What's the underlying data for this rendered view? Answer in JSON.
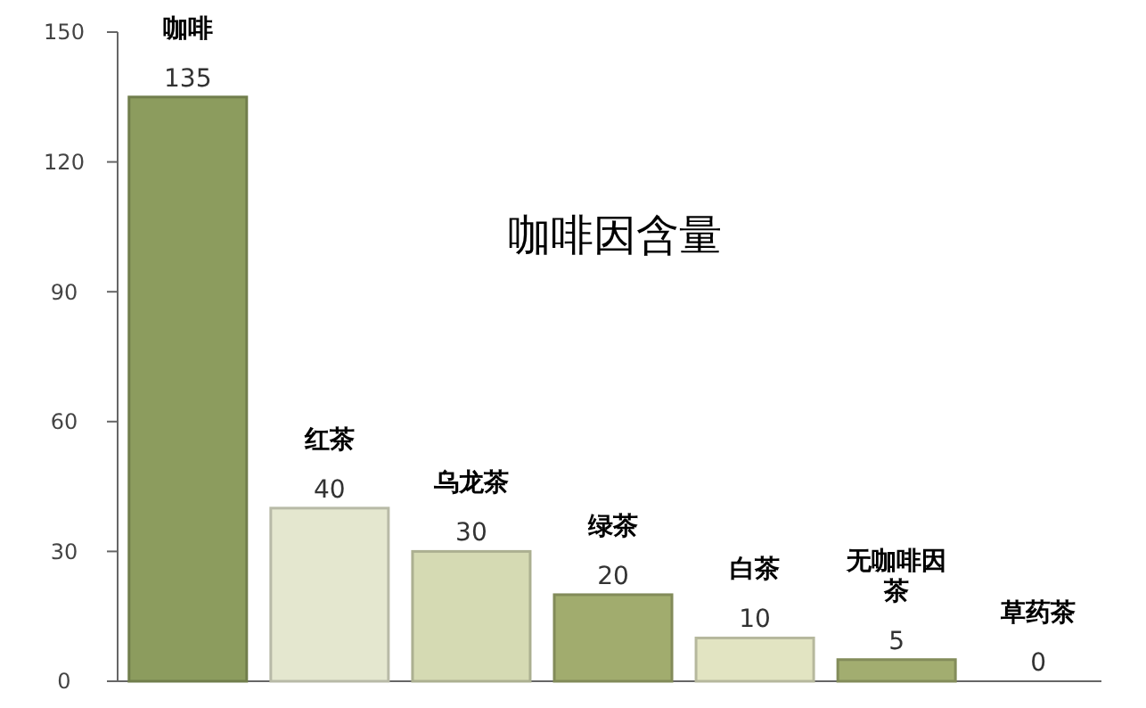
{
  "chart_data": {
    "type": "bar",
    "title": "咖啡因含量",
    "categories": [
      "咖啡",
      "红茶",
      "乌龙茶",
      "绿茶",
      "白茶",
      "无咖啡因茶",
      "草药茶"
    ],
    "values": [
      135,
      40,
      30,
      20,
      10,
      5,
      0
    ],
    "colors": [
      "#8c9c5e",
      "#e4e7cf",
      "#d5dab3",
      "#a1ac6e",
      "#e2e4c2",
      "#a2ad70",
      "#e2e4c2"
    ],
    "ylim": [
      0,
      150
    ],
    "yticks": [
      0,
      30,
      60,
      90,
      120,
      150
    ],
    "data_labels": true,
    "grid": false
  }
}
